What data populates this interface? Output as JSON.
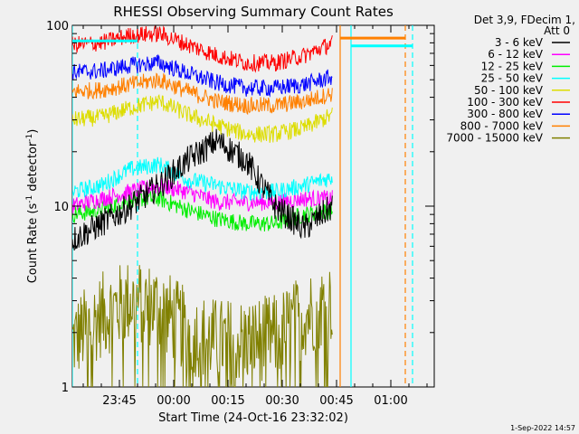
{
  "chart_data": {
    "type": "line",
    "title": "RHESSI Observing Summary Count Rates",
    "xlabel": "Start Time (24-Oct-16 23:32:02)",
    "ylabel": "Count Rate (s",
    "ylabel_sup": "-1",
    "ylabel_tail": " detector",
    "ylabel_tail2": ")",
    "y_scale": "log",
    "ylim": [
      1,
      100
    ],
    "xlim_minutes": [
      0,
      100
    ],
    "x_ticks": [
      {
        "label": "23:45",
        "minute": 13
      },
      {
        "label": "00:00",
        "minute": 28
      },
      {
        "label": "00:15",
        "minute": 43
      },
      {
        "label": "00:30",
        "minute": 58
      },
      {
        "label": "00:45",
        "minute": 73
      },
      {
        "label": "01:00",
        "minute": 88
      }
    ],
    "y_ticks": [
      {
        "label": "1",
        "value": 1
      },
      {
        "label": "10",
        "value": 10
      },
      {
        "label": "100",
        "value": 100
      }
    ],
    "legend_header": [
      "Det 3,9, FDecim 1,",
      "Att 0"
    ],
    "legend_position": "right",
    "series": [
      {
        "name": "3 - 6 keV",
        "color": "#000000",
        "values": [
          6.5,
          8.0,
          10.0,
          13.0,
          18.0,
          23.0,
          18.0,
          10.0,
          7.5,
          10.0
        ]
      },
      {
        "name": "6 - 12 keV",
        "color": "#ff00ff",
        "values": [
          10.0,
          11.0,
          12.0,
          13.0,
          12.0,
          10.5,
          10.5,
          10.5,
          11.0,
          11.0
        ]
      },
      {
        "name": "12 - 25 keV",
        "color": "#00ee00",
        "values": [
          9.0,
          9.5,
          11.0,
          11.0,
          9.5,
          8.5,
          8.0,
          8.0,
          9.0,
          9.5
        ]
      },
      {
        "name": "25 - 50 keV",
        "color": "#00ffff",
        "values": [
          12.0,
          13.0,
          16.0,
          17.0,
          14.0,
          13.0,
          12.0,
          12.0,
          13.0,
          14.5
        ]
      },
      {
        "name": "50 - 100 keV",
        "color": "#dddd00",
        "values": [
          30.0,
          31.0,
          35.0,
          38.0,
          32.0,
          28.0,
          25.0,
          25.0,
          27.0,
          32.0
        ]
      },
      {
        "name": "100 - 300 keV",
        "color": "#ff0000",
        "values": [
          78.0,
          80.0,
          88.0,
          90.0,
          78.0,
          68.0,
          62.0,
          62.0,
          68.0,
          80.0
        ]
      },
      {
        "name": "300 - 800 keV",
        "color": "#0000ff",
        "values": [
          55.0,
          56.0,
          60.0,
          62.0,
          54.0,
          48.0,
          45.0,
          45.0,
          47.0,
          52.0
        ]
      },
      {
        "name": "800 - 7000 keV",
        "color": "#ff8000",
        "values": [
          43.0,
          44.0,
          47.0,
          50.0,
          43.0,
          38.0,
          36.0,
          36.0,
          38.0,
          42.0
        ]
      },
      {
        "name": "7000 - 15000 keV",
        "color": "#808000",
        "values": [
          1.8,
          2.5,
          3.0,
          2.8,
          2.0,
          1.8,
          1.8,
          1.9,
          2.5,
          3.0
        ]
      }
    ],
    "series_x_minutes": [
      0,
      8,
      16,
      24,
      32,
      40,
      48,
      56,
      64,
      72
    ],
    "markers": [
      {
        "minute": 0,
        "color": "#00ffff",
        "style": "solid"
      },
      {
        "minute": 18,
        "color": "#00ffff",
        "style": "dashed"
      },
      {
        "minute": 74,
        "color": "#ff8000",
        "style": "solid"
      },
      {
        "minute": 77,
        "color": "#00ffff",
        "style": "solid"
      },
      {
        "minute": 92,
        "color": "#ff8000",
        "style": "dashed"
      },
      {
        "minute": 94,
        "color": "#00ffff",
        "style": "dashed"
      }
    ],
    "level_bars": [
      {
        "from": 0,
        "to": 18,
        "value": 82,
        "color": "#00ffff"
      },
      {
        "from": 74,
        "to": 92,
        "value": 85,
        "color": "#ff8000"
      },
      {
        "from": 77,
        "to": 94,
        "value": 77,
        "color": "#00ffff"
      }
    ],
    "timestamp": "1-Sep-2022 14:57"
  }
}
